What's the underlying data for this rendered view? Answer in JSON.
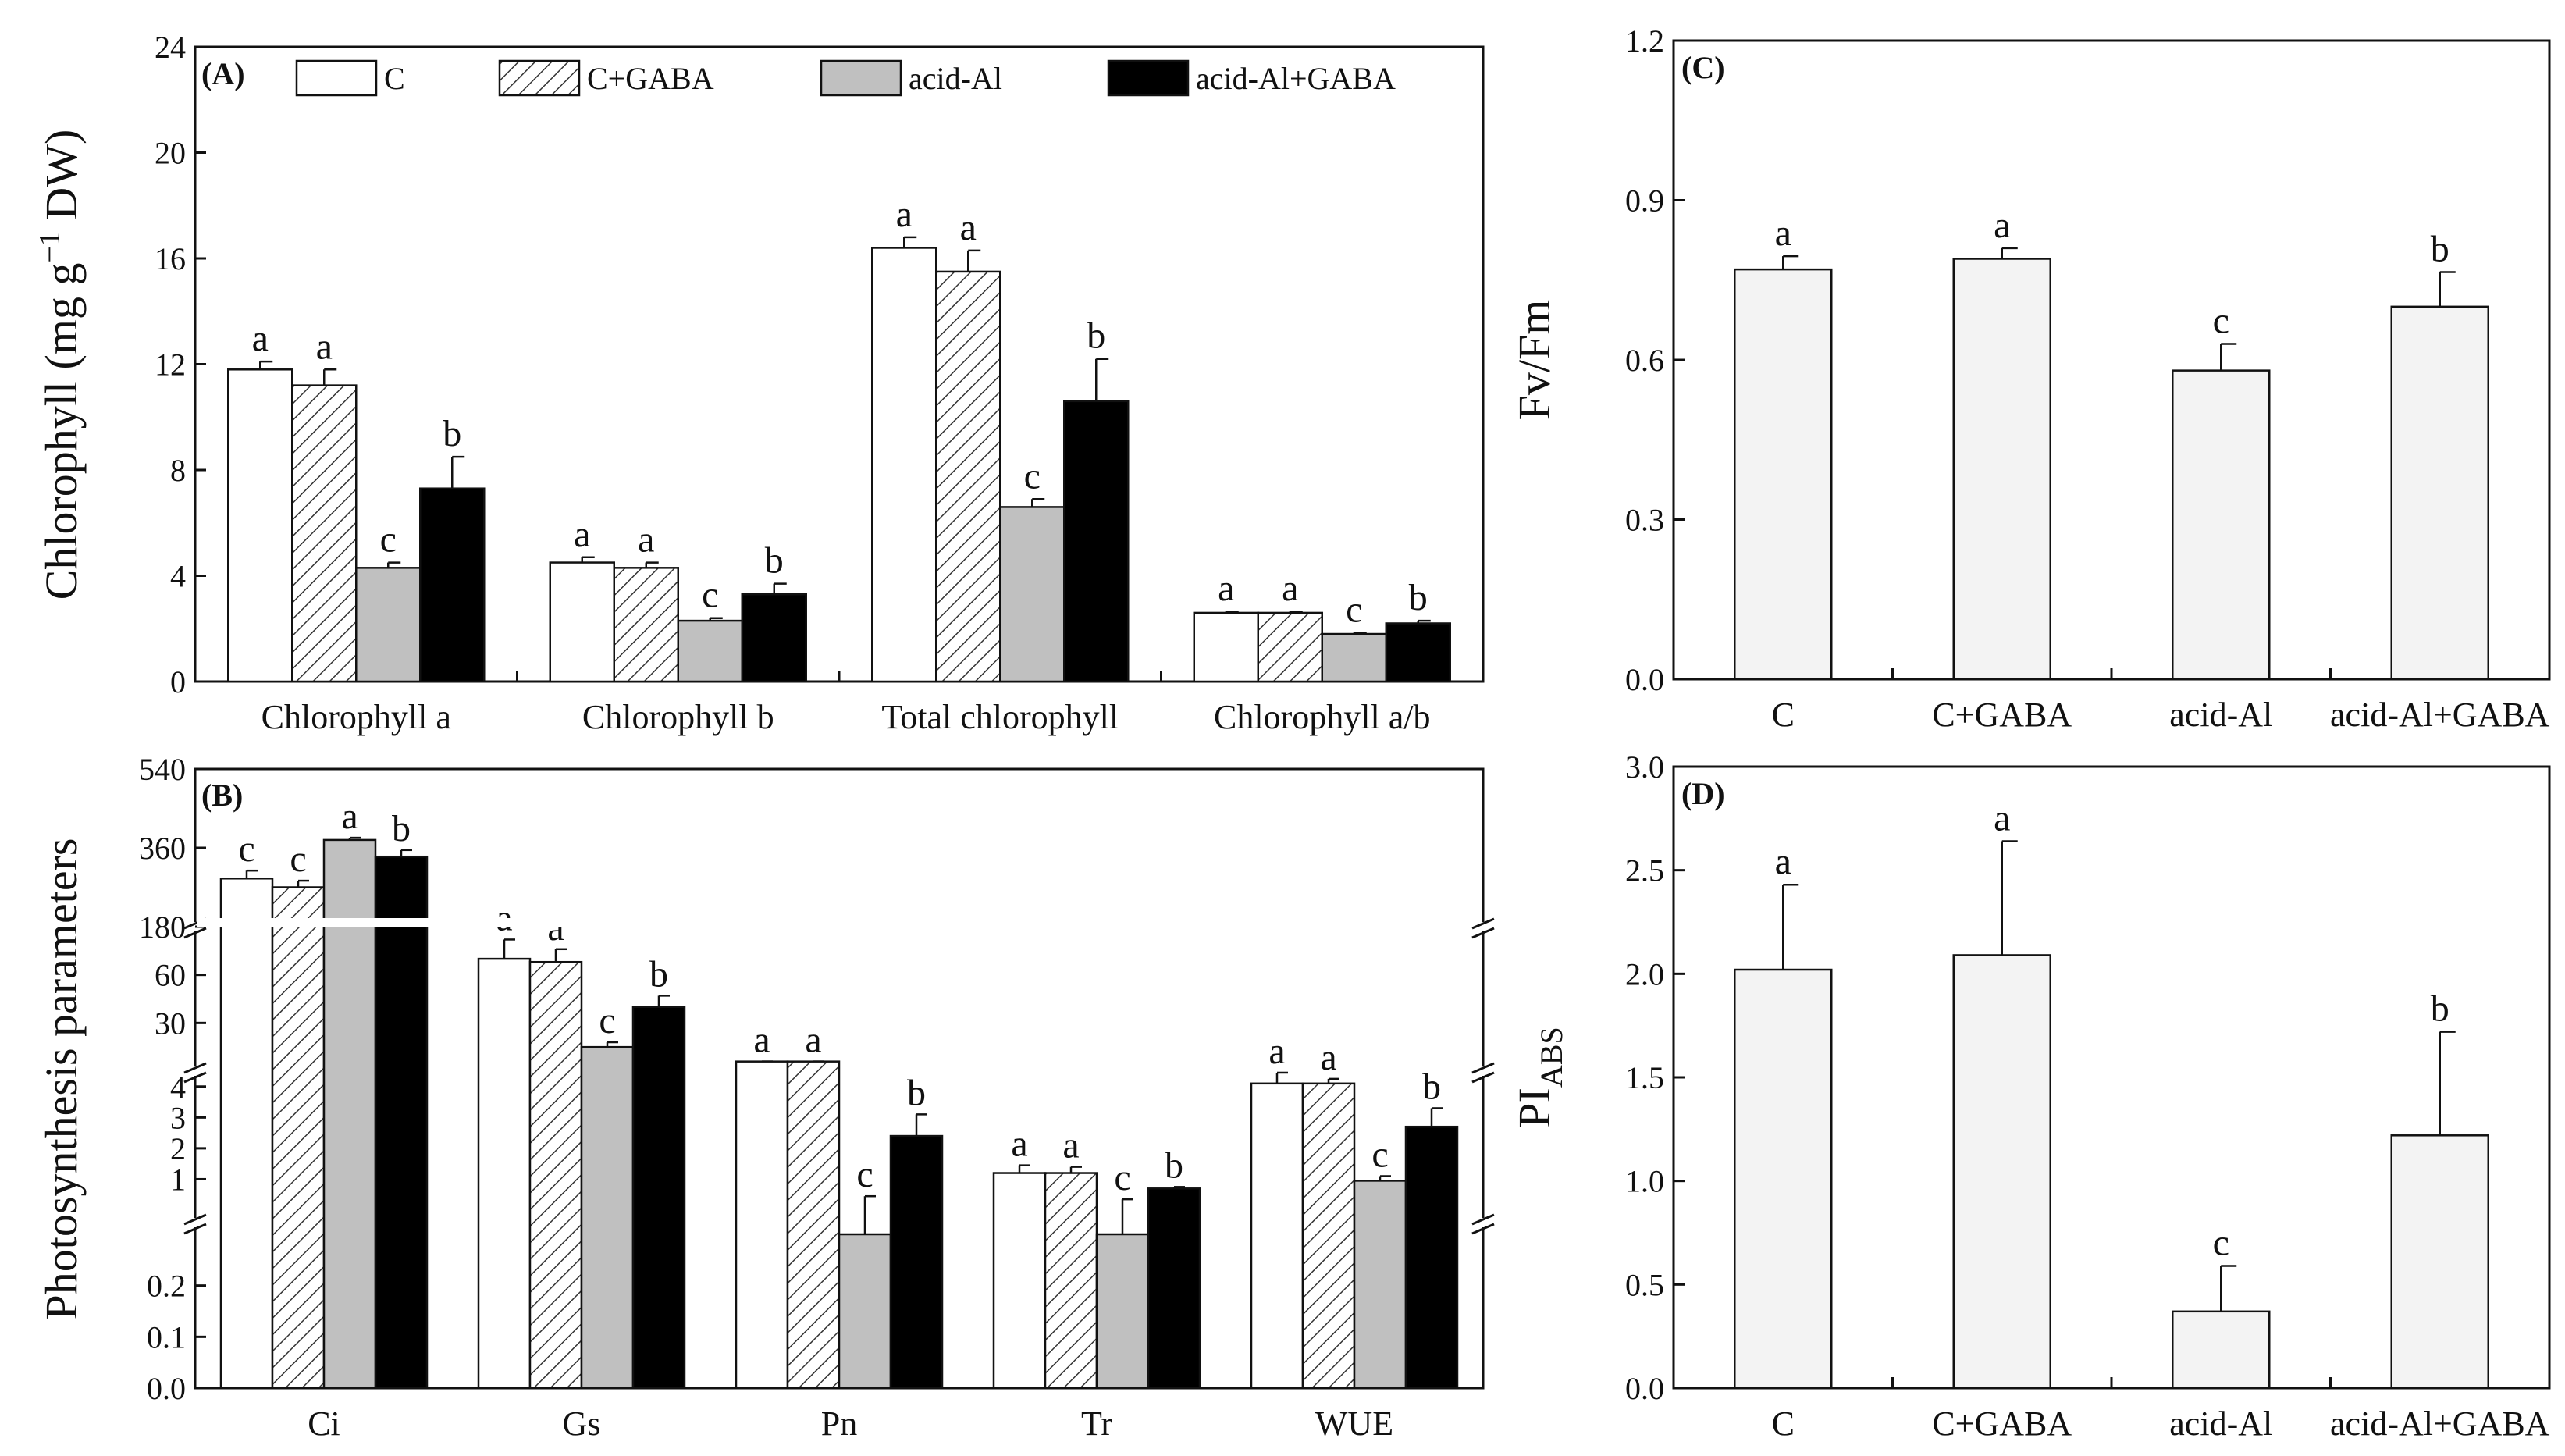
{
  "figure": {
    "treatments": [
      "C",
      "C+GABA",
      "acid-Al",
      "acid-Al+GABA"
    ],
    "styles": {
      "C": {
        "fill": "#ffffff"
      },
      "C+GABA": {
        "fill": "hatch"
      },
      "acid-Al": {
        "fill": "#c0c0c0"
      },
      "acid-Al+GABA": {
        "fill": "#000000"
      }
    },
    "single_bar_fill": "#f3f3f3",
    "axis_color": "#111111"
  },
  "chart_data": [
    {
      "id": "A",
      "panel_label": "(A)",
      "type": "bar",
      "ylabel": "Chlorophyll (mg g",
      "ylabel_sup": "−1",
      "ylabel_tail": " DW)",
      "ylim": [
        0,
        24
      ],
      "yticks": [
        "0",
        "4",
        "8",
        "12",
        "16",
        "20",
        "24"
      ],
      "categories": [
        "Chlorophyll a",
        "Chlorophyll b",
        "Total chlorophyll",
        "Chlorophyll a/b"
      ],
      "legend": [
        "C",
        "C+GABA",
        "acid-Al",
        "acid-Al+GABA"
      ],
      "series": [
        {
          "name": "C",
          "values": [
            11.8,
            4.5,
            16.4,
            2.6
          ],
          "errors": [
            0.3,
            0.2,
            0.4,
            0.05
          ],
          "letters": [
            "a",
            "a",
            "a",
            "a"
          ]
        },
        {
          "name": "C+GABA",
          "values": [
            11.2,
            4.3,
            15.5,
            2.6
          ],
          "errors": [
            0.6,
            0.2,
            0.8,
            0.05
          ],
          "letters": [
            "a",
            "a",
            "a",
            "a"
          ]
        },
        {
          "name": "acid-Al",
          "values": [
            4.3,
            2.3,
            6.6,
            1.8
          ],
          "errors": [
            0.2,
            0.1,
            0.3,
            0.05
          ],
          "letters": [
            "c",
            "c",
            "c",
            "c"
          ]
        },
        {
          "name": "acid-Al+GABA",
          "values": [
            7.3,
            3.3,
            10.6,
            2.2
          ],
          "errors": [
            1.2,
            0.4,
            1.6,
            0.1
          ],
          "letters": [
            "b",
            "b",
            "b",
            "b"
          ]
        }
      ]
    },
    {
      "id": "B",
      "panel_label": "(B)",
      "type": "bar",
      "ylabel": "Photosynthesis parameters",
      "broken_axis": true,
      "segments": [
        {
          "range": [
            0,
            0.3
          ],
          "ticks": [
            "0.0",
            "0.1",
            "0.2"
          ]
        },
        {
          "range": [
            0,
            4.5
          ],
          "ticks": [
            "1",
            "2",
            "3",
            "4"
          ]
        },
        {
          "range": [
            0,
            90
          ],
          "ticks": [
            "30",
            "60"
          ]
        },
        {
          "range": [
            180,
            540
          ],
          "ticks": [
            "180",
            "360",
            "540"
          ]
        }
      ],
      "categories": [
        "Ci",
        "Gs",
        "Pn",
        "Tr",
        "WUE"
      ],
      "series": [
        {
          "name": "C",
          "values": [
            290,
            70,
            6.0,
            1.2,
            4.1
          ],
          "errors": [
            18,
            12,
            0.05,
            0.25,
            0.35
          ],
          "letters": [
            "c",
            "a",
            "a",
            "a",
            "a"
          ]
        },
        {
          "name": "C+GABA",
          "values": [
            270,
            68,
            6.0,
            1.2,
            4.1
          ],
          "errors": [
            15,
            8,
            0.05,
            0.2,
            0.15
          ],
          "letters": [
            "c",
            "a",
            "a",
            "a",
            "a"
          ]
        },
        {
          "name": "acid-Al",
          "values": [
            378,
            15,
            0.3,
            0.3,
            0.95
          ],
          "errors": [
            5,
            3,
            0.15,
            0.05,
            0.15
          ],
          "letters": [
            "a",
            "c",
            "c",
            "c",
            "c"
          ]
        },
        {
          "name": "acid-Al+GABA",
          "values": [
            340,
            40,
            2.4,
            0.7,
            2.7
          ],
          "errors": [
            15,
            7,
            0.7,
            0.05,
            0.6
          ],
          "letters": [
            "b",
            "b",
            "b",
            "b",
            "b"
          ]
        }
      ]
    },
    {
      "id": "C",
      "panel_label": "(C)",
      "type": "bar",
      "ylabel": "Fv/Fm",
      "ylim": [
        0,
        1.2
      ],
      "yticks": [
        "0.0",
        "0.3",
        "0.6",
        "0.9",
        "1.2"
      ],
      "categories": [
        "C",
        "C+GABA",
        "acid-Al",
        "acid-Al+GABA"
      ],
      "values": [
        0.77,
        0.79,
        0.58,
        0.7
      ],
      "errors": [
        0.025,
        0.02,
        0.05,
        0.065
      ],
      "letters": [
        "a",
        "a",
        "c",
        "b"
      ]
    },
    {
      "id": "D",
      "panel_label": "(D)",
      "type": "bar",
      "ylabel": "PI",
      "ylabel_sub": "ABS",
      "ylim": [
        0,
        3.0
      ],
      "yticks": [
        "0.0",
        "0.5",
        "1.0",
        "1.5",
        "2.0",
        "2.5",
        "3.0"
      ],
      "categories": [
        "C",
        "C+GABA",
        "acid-Al",
        "acid-Al+GABA"
      ],
      "values": [
        2.02,
        2.09,
        0.37,
        1.22
      ],
      "errors": [
        0.41,
        0.55,
        0.22,
        0.5
      ],
      "letters": [
        "a",
        "a",
        "c",
        "b"
      ]
    }
  ]
}
